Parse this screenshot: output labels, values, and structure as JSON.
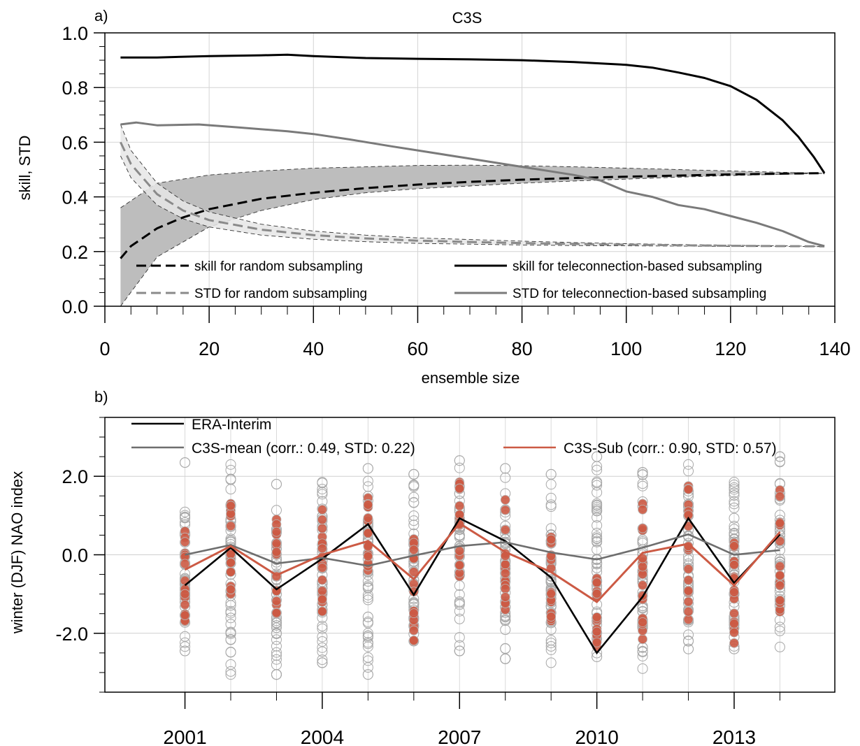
{
  "figure": {
    "panel_a_label": "a)",
    "panel_b_label": "b)"
  },
  "colors": {
    "skill_random": "#000000",
    "std_random": "#8a8a8a",
    "skill_tele": "#000000",
    "std_tele": "#7a7a7a",
    "band_skill": "#bdbdbd",
    "band_std": "#e6e6e6",
    "era": "#000000",
    "c3s_mean": "#6e6e6e",
    "c3s_sub": "#cc5a44",
    "member_circle": "#a8a8a8"
  },
  "chart_data": [
    {
      "type": "line",
      "title": "C3S",
      "xlabel": "ensemble size",
      "ylabel": "skill, STD",
      "xlim": [
        0,
        140
      ],
      "ylim": [
        0,
        1
      ],
      "xticks": [
        "0",
        "20",
        "40",
        "60",
        "80",
        "100",
        "120",
        "140"
      ],
      "yticks": [
        "0.0",
        "0.2",
        "0.4",
        "0.6",
        "0.8",
        "1.0"
      ],
      "grid": true,
      "legend_position": "bottom",
      "bands": [
        {
          "for_series": "skill for random subsampling",
          "x": [
            3,
            10,
            20,
            30,
            40,
            50,
            60,
            70,
            80,
            90,
            100,
            110,
            120,
            130,
            138
          ],
          "lower": [
            0.0,
            0.18,
            0.29,
            0.35,
            0.39,
            0.415,
            0.43,
            0.44,
            0.45,
            0.458,
            0.465,
            0.472,
            0.478,
            0.483,
            0.486
          ],
          "upper": [
            0.36,
            0.45,
            0.48,
            0.495,
            0.505,
            0.51,
            0.515,
            0.516,
            0.514,
            0.51,
            0.505,
            0.5,
            0.495,
            0.49,
            0.486
          ]
        },
        {
          "for_series": "STD for random subsampling",
          "x": [
            3,
            5,
            10,
            15,
            20,
            30,
            40,
            50,
            60,
            70,
            80,
            90,
            100,
            110,
            120,
            130,
            138
          ],
          "lower": [
            0.55,
            0.47,
            0.37,
            0.32,
            0.29,
            0.26,
            0.245,
            0.236,
            0.23,
            0.227,
            0.224,
            0.222,
            0.221,
            0.22,
            0.219,
            0.219,
            0.218
          ],
          "upper": [
            0.665,
            0.57,
            0.45,
            0.385,
            0.345,
            0.3,
            0.275,
            0.26,
            0.25,
            0.244,
            0.238,
            0.233,
            0.229,
            0.226,
            0.223,
            0.221,
            0.219
          ]
        }
      ],
      "series": [
        {
          "name": "skill for random subsampling",
          "style": "dashed",
          "x": [
            3,
            5,
            10,
            15,
            20,
            30,
            40,
            50,
            60,
            70,
            80,
            90,
            100,
            110,
            120,
            130,
            138
          ],
          "values": [
            0.175,
            0.22,
            0.285,
            0.325,
            0.355,
            0.393,
            0.415,
            0.432,
            0.445,
            0.455,
            0.463,
            0.469,
            0.474,
            0.478,
            0.482,
            0.485,
            0.487
          ]
        },
        {
          "name": "skill for teleconnection-based subsampling",
          "style": "solid",
          "x": [
            3,
            10,
            20,
            30,
            35,
            40,
            50,
            60,
            70,
            80,
            90,
            100,
            105,
            110,
            115,
            120,
            125,
            130,
            133,
            136,
            138
          ],
          "values": [
            0.91,
            0.91,
            0.915,
            0.918,
            0.92,
            0.915,
            0.908,
            0.905,
            0.903,
            0.9,
            0.893,
            0.883,
            0.873,
            0.855,
            0.835,
            0.805,
            0.755,
            0.68,
            0.62,
            0.545,
            0.487
          ]
        },
        {
          "name": "STD for random subsampling",
          "style": "dashed",
          "x": [
            3,
            5,
            10,
            15,
            20,
            30,
            40,
            50,
            60,
            70,
            80,
            90,
            100,
            110,
            120,
            130,
            138
          ],
          "values": [
            0.6,
            0.52,
            0.41,
            0.35,
            0.315,
            0.28,
            0.26,
            0.248,
            0.24,
            0.235,
            0.231,
            0.228,
            0.225,
            0.223,
            0.221,
            0.22,
            0.219
          ]
        },
        {
          "name": "STD for teleconnection-based subsampling",
          "style": "solid",
          "x": [
            3,
            6,
            10,
            18,
            25,
            35,
            40,
            47,
            55,
            60,
            70,
            80,
            90,
            95,
            100,
            105,
            110,
            115,
            120,
            125,
            130,
            135,
            138
          ],
          "values": [
            0.665,
            0.672,
            0.662,
            0.665,
            0.655,
            0.64,
            0.63,
            0.61,
            0.585,
            0.57,
            0.54,
            0.51,
            0.48,
            0.46,
            0.42,
            0.4,
            0.37,
            0.355,
            0.33,
            0.305,
            0.275,
            0.235,
            0.22
          ]
        }
      ]
    },
    {
      "type": "line",
      "title": "",
      "xlabel": "",
      "ylabel": "winter (DJF) NAO index",
      "xlim": [
        1999.25,
        2015.2
      ],
      "ylim": [
        -3.5,
        3.5
      ],
      "xticks": [
        "2001",
        "2004",
        "2007",
        "2010",
        "2013"
      ],
      "yticks": [
        "-2.0",
        "0.0",
        "2.0"
      ],
      "grid": true,
      "legend_position": "top",
      "x": [
        2001,
        2002,
        2003,
        2004,
        2005,
        2006,
        2007,
        2008,
        2009,
        2010,
        2011,
        2012,
        2013,
        2014
      ],
      "series": [
        {
          "name": "ERA-Interim",
          "values": [
            -0.78,
            0.18,
            -0.88,
            -0.1,
            0.78,
            -1.02,
            0.93,
            0.35,
            -0.58,
            -2.5,
            -1.07,
            0.93,
            -0.72,
            0.52
          ]
        },
        {
          "name": "C3S-mean (corr.: 0.49, STD: 0.22)",
          "values": [
            0.0,
            0.25,
            -0.22,
            -0.08,
            -0.28,
            -0.02,
            0.22,
            0.32,
            0.06,
            -0.12,
            0.18,
            0.52,
            0.0,
            0.12
          ]
        },
        {
          "name": "C3S-Sub (corr.: 0.90, STD: 0.57)",
          "values": [
            -0.38,
            0.22,
            -0.52,
            0.0,
            0.35,
            -0.62,
            0.8,
            0.07,
            -0.44,
            -1.2,
            0.05,
            0.28,
            -0.78,
            0.58
          ]
        }
      ],
      "members": {
        "all_range": [
          [
            -2.45,
            2.35
          ],
          [
            -3.05,
            2.3
          ],
          [
            -3.05,
            1.8
          ],
          [
            -2.75,
            1.85
          ],
          [
            -3.05,
            2.2
          ],
          [
            -2.2,
            2.05
          ],
          [
            -2.45,
            2.4
          ],
          [
            -2.65,
            2.2
          ],
          [
            -2.75,
            2.05
          ],
          [
            -2.6,
            2.5
          ],
          [
            -2.9,
            2.1
          ],
          [
            -2.4,
            2.3
          ],
          [
            -2.4,
            1.85
          ],
          [
            -2.35,
            2.5
          ]
        ],
        "sub_range": [
          [
            -1.7,
            0.6
          ],
          [
            -1.0,
            1.3
          ],
          [
            -1.5,
            0.9
          ],
          [
            -1.45,
            1.15
          ],
          [
            -0.4,
            1.45
          ],
          [
            -2.2,
            0.4
          ],
          [
            -0.55,
            1.85
          ],
          [
            -1.4,
            1.4
          ],
          [
            -1.7,
            0.45
          ],
          [
            -2.35,
            -0.6
          ],
          [
            -2.15,
            1.3
          ],
          [
            -1.65,
            1.75
          ],
          [
            -2.25,
            0.3
          ],
          [
            -1.45,
            1.65
          ]
        ]
      }
    }
  ]
}
